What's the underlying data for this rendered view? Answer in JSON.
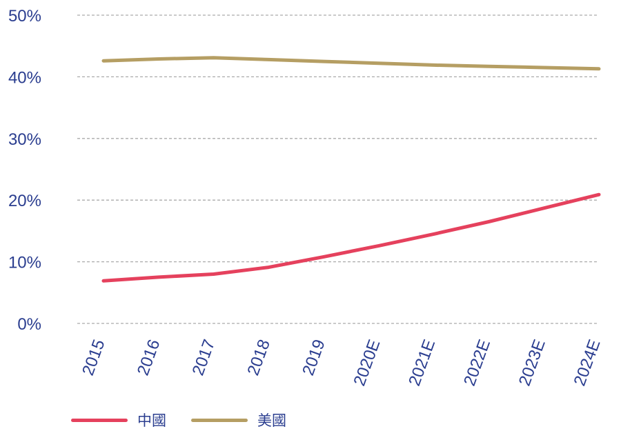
{
  "chart_data": {
    "type": "line",
    "title": "",
    "xlabel": "",
    "ylabel": "",
    "x": [
      "2015",
      "2016",
      "2017",
      "2018",
      "2019",
      "2020E",
      "2021E",
      "2022E",
      "2023E",
      "2024E"
    ],
    "y_ticks": [
      "0%",
      "10%",
      "20%",
      "30%",
      "40%",
      "50%"
    ],
    "ylim": [
      0,
      50
    ],
    "grid": true,
    "legend_position": "bottom-left",
    "series": [
      {
        "name": "中國",
        "color": "#e5415d",
        "values": [
          6.9,
          7.5,
          8.0,
          9.1,
          10.8,
          12.6,
          14.5,
          16.5,
          18.7,
          20.9
        ]
      },
      {
        "name": "美國",
        "color": "#b59e63",
        "values": [
          42.6,
          42.9,
          43.1,
          42.8,
          42.5,
          42.2,
          41.9,
          41.7,
          41.5,
          41.3
        ]
      }
    ]
  }
}
